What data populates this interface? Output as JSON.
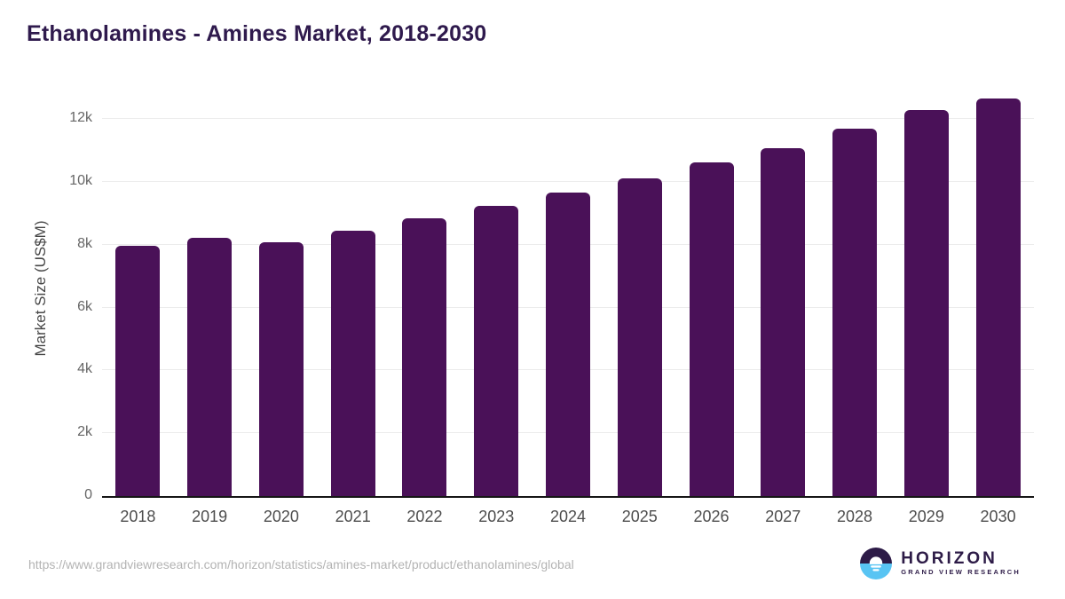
{
  "title": "Ethanolamines - Amines Market, 2018-2030",
  "footer": {
    "source_url": "https://www.grandviewresearch.com/horizon/statistics/amines-market/product/ethanolamines/global"
  },
  "logo": {
    "wordmark": "HORIZON",
    "subtitle": "GRAND VIEW RESEARCH"
  },
  "colors": {
    "bar": "#4a1158",
    "title_text": "#2f1a4d",
    "gridline": "#ececec",
    "axis_line": "#161616",
    "y_tick_text": "#666666",
    "x_tick_text": "#4d4d4d",
    "url_text": "#b3b3b3",
    "logo_purple": "#2d1b47",
    "logo_blue": "#58c4f3"
  },
  "chart_data": {
    "type": "bar",
    "title": "Ethanolamines - Amines Market, 2018-2030",
    "categories": [
      "2018",
      "2019",
      "2020",
      "2021",
      "2022",
      "2023",
      "2024",
      "2025",
      "2026",
      "2027",
      "2028",
      "2029",
      "2030"
    ],
    "values": [
      7960,
      8220,
      8070,
      8440,
      8850,
      9250,
      9660,
      10130,
      10630,
      11090,
      11700,
      12290,
      12650
    ],
    "xlabel": "",
    "ylabel": "Market Size (US$M)",
    "ylim": [
      0,
      13000
    ],
    "yticks": [
      {
        "value": 0,
        "label": "0"
      },
      {
        "value": 2000,
        "label": "2k"
      },
      {
        "value": 4000,
        "label": "4k"
      },
      {
        "value": 6000,
        "label": "6k"
      },
      {
        "value": 8000,
        "label": "8k"
      },
      {
        "value": 10000,
        "label": "10k"
      },
      {
        "value": 12000,
        "label": "12k"
      }
    ],
    "grid": "horizontal",
    "legend": "none"
  }
}
